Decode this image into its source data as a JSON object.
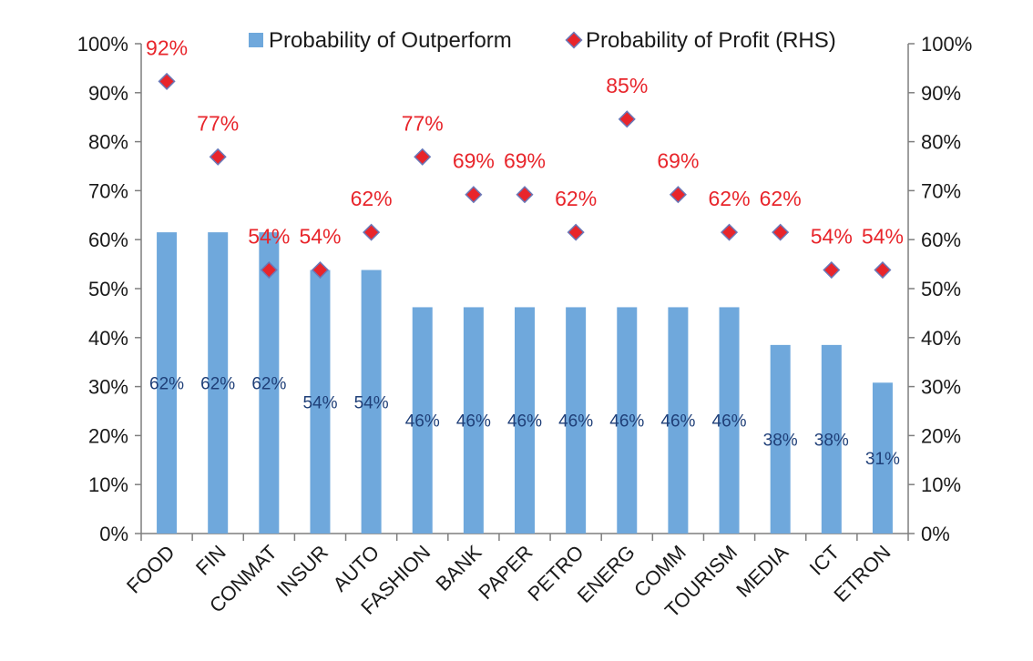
{
  "chart_data": {
    "type": "bar",
    "title": "",
    "xlabel": "",
    "ylabel": "",
    "ylim": [
      0,
      100
    ],
    "y2lim": [
      0,
      100
    ],
    "y_ticks": [
      "0%",
      "10%",
      "20%",
      "30%",
      "40%",
      "50%",
      "60%",
      "70%",
      "80%",
      "90%",
      "100%"
    ],
    "y2_ticks": [
      "0%",
      "10%",
      "20%",
      "30%",
      "40%",
      "50%",
      "60%",
      "70%",
      "80%",
      "90%",
      "100%"
    ],
    "legend_position": "top",
    "categories": [
      "FOOD",
      "FIN",
      "CONMAT",
      "INSUR",
      "AUTO",
      "FASHION",
      "BANK",
      "PAPER",
      "PETRO",
      "ENERG",
      "COMM",
      "TOURISM",
      "MEDIA",
      "ICT",
      "ETRON"
    ],
    "series": [
      {
        "name": "Probability of Outperform",
        "kind": "bar",
        "axis": "left",
        "color": "#6fa8dc",
        "label_color": "#1f3f78",
        "values": [
          61.5,
          61.5,
          61.5,
          53.8,
          53.8,
          46.2,
          46.2,
          46.2,
          46.2,
          46.2,
          46.2,
          46.2,
          38.5,
          38.5,
          30.8
        ],
        "labels": [
          "62%",
          "62%",
          "62%",
          "54%",
          "54%",
          "46%",
          "46%",
          "46%",
          "46%",
          "46%",
          "46%",
          "46%",
          "38%",
          "38%",
          "31%"
        ]
      },
      {
        "name": "Probability of Profit (RHS)",
        "kind": "diamond",
        "axis": "right",
        "color": "#e8252b",
        "edge_color": "#6a78b8",
        "label_color": "#e8252b",
        "values": [
          92.3,
          76.9,
          53.8,
          53.8,
          61.5,
          76.9,
          69.2,
          69.2,
          61.5,
          84.6,
          69.2,
          61.5,
          61.5,
          53.8,
          53.8
        ],
        "labels": [
          "92%",
          "77%",
          "54%",
          "54%",
          "62%",
          "77%",
          "69%",
          "69%",
          "62%",
          "85%",
          "69%",
          "62%",
          "62%",
          "54%",
          "54%"
        ]
      }
    ]
  }
}
